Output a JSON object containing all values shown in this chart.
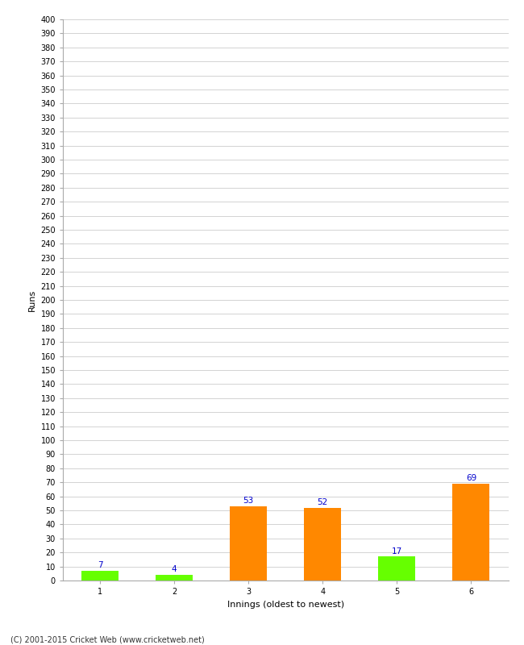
{
  "title": "",
  "xlabel": "Innings (oldest to newest)",
  "ylabel": "Runs",
  "categories": [
    1,
    2,
    3,
    4,
    5,
    6
  ],
  "values": [
    7,
    4,
    53,
    52,
    17,
    69
  ],
  "bar_colors": [
    "#66ff00",
    "#66ff00",
    "#ff8800",
    "#ff8800",
    "#66ff00",
    "#ff8800"
  ],
  "ylim": [
    0,
    400
  ],
  "ytick_step": 10,
  "label_color": "#0000cc",
  "label_fontsize": 7.5,
  "axis_fontsize": 8,
  "tick_fontsize": 7,
  "background_color": "#ffffff",
  "plot_bg_color": "#ffffff",
  "grid_color": "#cccccc",
  "bar_width": 0.5,
  "copyright": "(C) 2001-2015 Cricket Web (www.cricketweb.net)"
}
